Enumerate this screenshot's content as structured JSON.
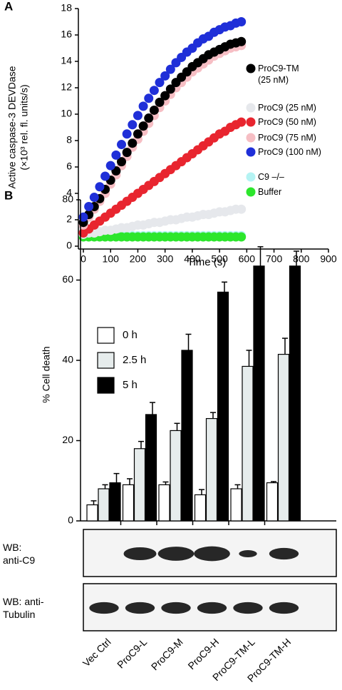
{
  "chart_data": [
    {
      "type": "scatter",
      "panel": "A",
      "title": null,
      "xlabel": "Time (s)",
      "ylabel": [
        "Active caspase-3 DEVDase",
        "(×10³ rel. fl. units/s)"
      ],
      "xlim": [
        0,
        900
      ],
      "xticks": [
        0,
        100,
        200,
        300,
        400,
        500,
        600,
        700,
        800,
        900
      ],
      "ylim": [
        0,
        18
      ],
      "yticks": [
        0,
        2,
        4,
        6,
        8,
        10,
        12,
        14,
        16,
        18
      ],
      "x": [
        0,
        20,
        40,
        60,
        80,
        100,
        120,
        140,
        160,
        180,
        200,
        220,
        240,
        260,
        280,
        300,
        320,
        340,
        360,
        380,
        400,
        420,
        440,
        460,
        480,
        500,
        520,
        540,
        560,
        580
      ],
      "series": [
        {
          "name": "ProC9-TM\n(25 nM)",
          "color": "#000000",
          "values": [
            1.8,
            2.4,
            3.0,
            3.6,
            4.3,
            5.0,
            5.7,
            6.4,
            7.1,
            7.8,
            8.5,
            9.1,
            9.7,
            10.3,
            10.9,
            11.4,
            11.9,
            12.4,
            12.8,
            13.2,
            13.6,
            13.9,
            14.2,
            14.5,
            14.7,
            14.9,
            15.1,
            15.3,
            15.4,
            15.5
          ]
        },
        {
          "name": "ProC9 (25 nM)",
          "color": "#e6e8ec",
          "values": [
            0.9,
            1.0,
            1.0,
            1.1,
            1.2,
            1.2,
            1.3,
            1.4,
            1.4,
            1.5,
            1.6,
            1.6,
            1.7,
            1.8,
            1.8,
            1.9,
            2.0,
            2.0,
            2.1,
            2.2,
            2.2,
            2.3,
            2.4,
            2.4,
            2.5,
            2.6,
            2.6,
            2.7,
            2.8,
            2.8
          ]
        },
        {
          "name": "ProC9 (50 nM)",
          "color": "#e8252f",
          "values": [
            1.0,
            1.3,
            1.6,
            1.9,
            2.2,
            2.5,
            2.8,
            3.1,
            3.4,
            3.7,
            4.0,
            4.3,
            4.6,
            4.9,
            5.2,
            5.5,
            5.8,
            6.1,
            6.4,
            6.7,
            7.0,
            7.3,
            7.6,
            7.9,
            8.2,
            8.5,
            8.7,
            9.0,
            9.2,
            9.4
          ]
        },
        {
          "name": "ProC9 (75 nM)",
          "color": "#f6bec4",
          "values": [
            1.6,
            2.2,
            2.8,
            3.4,
            4.0,
            4.7,
            5.4,
            6.1,
            6.8,
            7.5,
            8.1,
            8.7,
            9.3,
            9.9,
            10.5,
            11.0,
            11.5,
            12.0,
            12.4,
            12.8,
            13.2,
            13.5,
            13.8,
            14.1,
            14.4,
            14.6,
            14.8,
            15.0,
            15.1,
            15.2
          ]
        },
        {
          "name": "ProC9 (100 nM)",
          "color": "#1f2fd8",
          "values": [
            2.2,
            3.0,
            3.7,
            4.5,
            5.3,
            6.1,
            6.9,
            7.7,
            8.5,
            9.2,
            9.9,
            10.6,
            11.2,
            11.8,
            12.4,
            12.9,
            13.4,
            13.9,
            14.3,
            14.7,
            15.0,
            15.4,
            15.7,
            15.9,
            16.2,
            16.4,
            16.6,
            16.7,
            16.9,
            17.0
          ]
        },
        {
          "name": "C9 –/–",
          "color": "#b4f3f3",
          "values": [
            0.8,
            0.8,
            0.8,
            0.8,
            0.8,
            0.8,
            0.8,
            0.8,
            0.8,
            0.8,
            0.8,
            0.8,
            0.8,
            0.8,
            0.8,
            0.8,
            0.8,
            0.8,
            0.8,
            0.8,
            0.8,
            0.8,
            0.8,
            0.8,
            0.8,
            0.8,
            0.8,
            0.8,
            0.8,
            0.8
          ]
        },
        {
          "name": "Buffer",
          "color": "#2ce62c",
          "values": [
            0.7,
            0.7,
            0.7,
            0.7,
            0.7,
            0.7,
            0.7,
            0.7,
            0.7,
            0.7,
            0.7,
            0.7,
            0.7,
            0.7,
            0.7,
            0.7,
            0.7,
            0.7,
            0.7,
            0.7,
            0.7,
            0.7,
            0.7,
            0.7,
            0.7,
            0.7,
            0.7,
            0.7,
            0.7,
            0.7
          ]
        }
      ]
    },
    {
      "type": "bar",
      "panel": "B",
      "ylabel": "% Cell death",
      "ylim": [
        0,
        80
      ],
      "yticks": [
        0,
        20,
        40,
        60,
        80
      ],
      "categories": [
        "Vec Ctrl",
        "ProC9-L",
        "ProC9-M",
        "ProC9-H",
        "ProC9-TM-L",
        "ProC9-TM-H"
      ],
      "blot_labels": [
        "WB:\nanti-C9",
        "WB: anti-\nTubulin"
      ],
      "series": [
        {
          "name": "0 h",
          "color": "#ffffff",
          "values": [
            4,
            9,
            9,
            6.5,
            8,
            9.5
          ],
          "errors": [
            1,
            1.5,
            0.7,
            1.3,
            1,
            0.3
          ]
        },
        {
          "name": "2.5 h",
          "color": "#e6ecec",
          "values": [
            8,
            18,
            22.5,
            25.5,
            38.5,
            41.5
          ],
          "errors": [
            1,
            1.8,
            1.8,
            1.5,
            4,
            4
          ]
        },
        {
          "name": "5 h",
          "color": "#000000",
          "values": [
            9.5,
            26.5,
            42.5,
            57,
            63.5,
            63.5
          ],
          "errors": [
            2.3,
            3,
            4,
            2.5,
            4.8,
            3.7
          ]
        }
      ]
    }
  ]
}
